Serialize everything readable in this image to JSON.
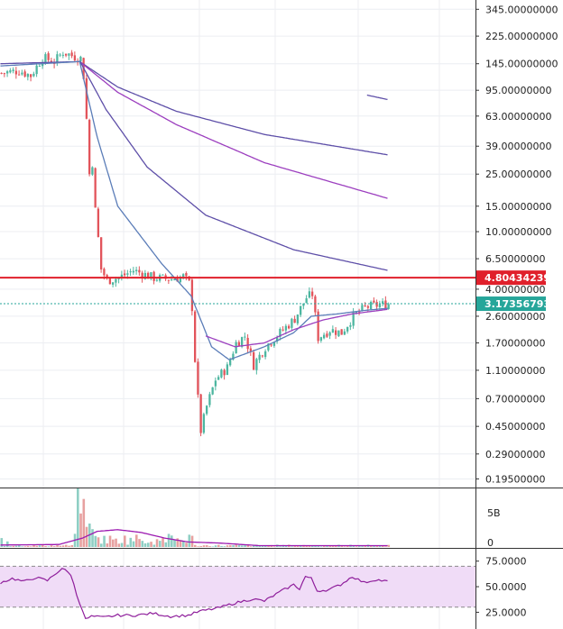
{
  "colors": {
    "up": "#4db6a0",
    "down": "#e2545b",
    "ma_dark": "#5e4fa8",
    "ma_purple": "#9c3fbf",
    "ma_steel": "#5b7db8",
    "resistance_line": "#e0202b",
    "current_price_line": "#26a69a",
    "rsi_line": "#8e1d9b",
    "rsi_band": "#f0dcf7",
    "volume_ma": "#9c1ab1",
    "grid": "#eceef2",
    "axis_text": "#222222"
  },
  "chart_data": [
    {
      "type": "candlestick",
      "panel": "price",
      "scale": "log",
      "y_range": [
        0.17,
        400
      ],
      "y_ticks": [
        "345.00000000",
        "225.00000000",
        "145.00000000",
        "95.00000000",
        "63.00000000",
        "39.00000000",
        "25.00000000",
        "15.00000000",
        "10.00000000",
        "6.50000000",
        "4.00000000",
        "2.60000000",
        "1.70000000",
        "1.10000000",
        "0.70000000",
        "0.45000000",
        "0.29000000",
        "0.19500000"
      ],
      "price_tags": [
        {
          "name": "resistance",
          "value": "4.80434239",
          "color": "#e0202b"
        },
        {
          "name": "current",
          "value": "3.17356793",
          "color": "#26a69a"
        }
      ],
      "anchors": [
        [
          0,
          125
        ],
        [
          6,
          130
        ],
        [
          10,
          120
        ],
        [
          14,
          160
        ],
        [
          18,
          150
        ],
        [
          21,
          175
        ],
        [
          24,
          165
        ],
        [
          27,
          158
        ],
        [
          28,
          120
        ],
        [
          29,
          60
        ],
        [
          30,
          25
        ],
        [
          31,
          30
        ],
        [
          32,
          14
        ],
        [
          33,
          9
        ],
        [
          34,
          5.5
        ],
        [
          36,
          4.6
        ],
        [
          40,
          4.8
        ],
        [
          45,
          5.4
        ],
        [
          52,
          4.8
        ],
        [
          58,
          4.7
        ],
        [
          62,
          4.9
        ],
        [
          64,
          4.4
        ],
        [
          65,
          3.0
        ],
        [
          66,
          1.3
        ],
        [
          67,
          0.7
        ],
        [
          68,
          0.42
        ],
        [
          70,
          0.62
        ],
        [
          73,
          0.95
        ],
        [
          77,
          1.15
        ],
        [
          80,
          1.7
        ],
        [
          83,
          1.9
        ],
        [
          86,
          1.2
        ],
        [
          90,
          1.6
        ],
        [
          95,
          2.0
        ],
        [
          100,
          2.5
        ],
        [
          104,
          3.5
        ],
        [
          106,
          3.7
        ],
        [
          108,
          1.85
        ],
        [
          112,
          2.1
        ],
        [
          116,
          2.0
        ],
        [
          120,
          2.6
        ],
        [
          124,
          3.0
        ],
        [
          128,
          3.1
        ],
        [
          132,
          3.17
        ]
      ],
      "moving_averages": [
        {
          "color": "ma_dark",
          "points": [
            [
              0,
              145
            ],
            [
              27,
              150
            ],
            [
              40,
              100
            ],
            [
              60,
              68
            ],
            [
              90,
              47
            ],
            [
              132,
              34
            ]
          ]
        },
        {
          "color": "ma_purple",
          "points": [
            [
              27,
              150
            ],
            [
              40,
              92
            ],
            [
              60,
              55
            ],
            [
              90,
              30
            ],
            [
              132,
              17
            ]
          ]
        },
        {
          "color": "ma_dark",
          "points": [
            [
              27,
              152
            ],
            [
              36,
              70
            ],
            [
              50,
              28
            ],
            [
              70,
              13
            ],
            [
              100,
              7.5
            ],
            [
              132,
              5.4
            ]
          ]
        },
        {
          "color": "ma_steel",
          "points": [
            [
              0,
              140
            ],
            [
              27,
              150
            ],
            [
              33,
              45
            ],
            [
              40,
              15
            ],
            [
              55,
              6
            ],
            [
              65,
              3.6
            ],
            [
              72,
              1.6
            ],
            [
              78,
              1.3
            ],
            [
              90,
              1.6
            ],
            [
              100,
              2.0
            ],
            [
              106,
              2.6
            ],
            [
              115,
              2.7
            ],
            [
              124,
              2.85
            ],
            [
              132,
              2.95
            ]
          ]
        },
        {
          "color": "ma_purple",
          "points": [
            [
              70,
              1.9
            ],
            [
              80,
              1.6
            ],
            [
              90,
              1.7
            ],
            [
              100,
              2.1
            ],
            [
              110,
              2.45
            ],
            [
              120,
              2.7
            ],
            [
              132,
              2.9
            ]
          ]
        },
        {
          "color": "ma_dark",
          "points": [
            [
              125,
              88
            ],
            [
              132,
              82
            ]
          ]
        }
      ]
    },
    {
      "type": "bar",
      "panel": "volume",
      "y_ticks": [
        "5B",
        "0"
      ],
      "spikes": [
        [
          26,
          10.5
        ],
        [
          27,
          6
        ],
        [
          28,
          8.6
        ],
        [
          30,
          4.2
        ],
        [
          31,
          3.2
        ],
        [
          29,
          3.6
        ],
        [
          39,
          1.5
        ],
        [
          53,
          1.4
        ],
        [
          64,
          2.2
        ],
        [
          62,
          1.1
        ],
        [
          0,
          1.6
        ],
        [
          2,
          1.0
        ]
      ],
      "ma_points": [
        [
          0,
          0.35
        ],
        [
          20,
          0.45
        ],
        [
          28,
          1.6
        ],
        [
          33,
          2.8
        ],
        [
          40,
          3.1
        ],
        [
          48,
          2.6
        ],
        [
          56,
          1.6
        ],
        [
          64,
          0.9
        ],
        [
          75,
          0.7
        ],
        [
          88,
          0.25
        ],
        [
          132,
          0.25
        ]
      ]
    },
    {
      "type": "line",
      "panel": "rsi",
      "y_ticks": [
        "75.0000",
        "50.0000",
        "25.0000"
      ],
      "band": [
        30,
        70
      ],
      "points": [
        [
          0,
          54
        ],
        [
          4,
          58
        ],
        [
          8,
          55
        ],
        [
          12,
          59
        ],
        [
          16,
          56
        ],
        [
          21,
          68
        ],
        [
          24,
          62
        ],
        [
          26,
          42
        ],
        [
          28,
          27
        ],
        [
          29,
          18
        ],
        [
          31,
          21
        ],
        [
          35,
          20
        ],
        [
          40,
          22
        ],
        [
          46,
          22
        ],
        [
          52,
          24
        ],
        [
          58,
          21
        ],
        [
          64,
          22
        ],
        [
          68,
          26
        ],
        [
          74,
          29
        ],
        [
          80,
          34
        ],
        [
          86,
          38
        ],
        [
          90,
          36
        ],
        [
          96,
          46
        ],
        [
          100,
          52
        ],
        [
          102,
          48
        ],
        [
          104,
          60
        ],
        [
          106,
          58
        ],
        [
          108,
          46
        ],
        [
          112,
          47
        ],
        [
          116,
          52
        ],
        [
          120,
          60
        ],
        [
          124,
          54
        ],
        [
          128,
          57
        ],
        [
          132,
          55
        ]
      ]
    }
  ]
}
